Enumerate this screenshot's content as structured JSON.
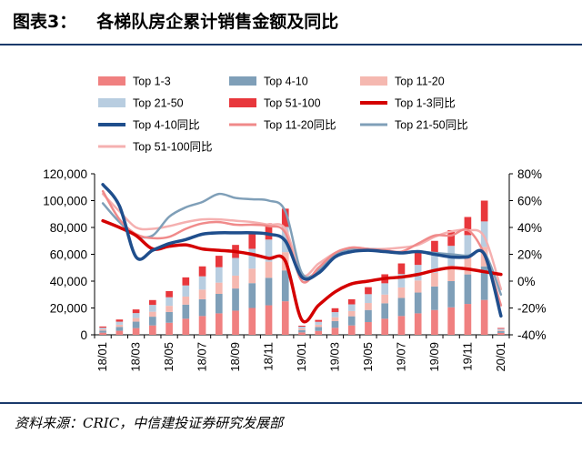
{
  "header": {
    "label": "图表3：",
    "title": "各梯队房企累计销售金额及同比"
  },
  "source": "资料来源：CRIC，中信建投证券研究发展部",
  "colors": {
    "top1_3": "#f08080",
    "top4_10": "#7f9fb8",
    "top11_20": "#f5b8b0",
    "top21_50": "#b8cde0",
    "top51_100": "#e8373c",
    "yoy1_3": "#d40000",
    "yoy4_10": "#1f4e8c",
    "yoy11_20": "#f08a8a",
    "yoy21_50": "#7f9fb8",
    "yoy51_100": "#f5b0b0",
    "rule": "#1a3a6b"
  },
  "chart_data": {
    "type": "bar",
    "stacked": true,
    "title": "",
    "xlabel": "",
    "ylabel_left": "",
    "ylabel_right": "",
    "ylim_left": [
      0,
      120000
    ],
    "ylim_right": [
      -0.4,
      0.8
    ],
    "yticks_left": [
      "0",
      "20,000",
      "40,000",
      "60,000",
      "80,000",
      "100,000",
      "120,000"
    ],
    "yticks_right": [
      "-40%",
      "-20%",
      "0%",
      "20%",
      "40%",
      "60%",
      "80%"
    ],
    "legend_position": "top",
    "categories": [
      "18/01",
      "18/02",
      "18/03",
      "18/04",
      "18/05",
      "18/06",
      "18/07",
      "18/08",
      "18/09",
      "18/10",
      "18/11",
      "18/12",
      "19/01",
      "19/02",
      "19/03",
      "19/04",
      "19/05",
      "19/06",
      "19/07",
      "19/08",
      "19/09",
      "19/10",
      "19/11",
      "19/12",
      "20/01"
    ],
    "x_tick_labels": [
      "18/01",
      "18/03",
      "18/05",
      "18/07",
      "18/09",
      "18/11",
      "19/01",
      "19/03",
      "19/05",
      "19/07",
      "19/09",
      "19/11",
      "20/01"
    ],
    "bar_series": [
      {
        "name": "Top 1-3",
        "color_key": "top1_3",
        "values": [
          1600,
          3000,
          5000,
          7000,
          9000,
          12000,
          14000,
          16000,
          18000,
          20000,
          22000,
          25000,
          1800,
          2900,
          5200,
          7000,
          9500,
          12000,
          14000,
          16000,
          18500,
          20500,
          23000,
          26000,
          1400
        ]
      },
      {
        "name": "Top 4-10",
        "color_key": "top4_10",
        "values": [
          1600,
          2900,
          4800,
          6500,
          8000,
          10500,
          12500,
          14500,
          16500,
          18500,
          20500,
          23000,
          1800,
          2900,
          5000,
          6800,
          9000,
          11500,
          13500,
          15500,
          17500,
          19500,
          22000,
          25000,
          1300
        ]
      },
      {
        "name": "Top 11-20",
        "color_key": "top11_20",
        "values": [
          900,
          1600,
          2700,
          3700,
          4600,
          6000,
          7200,
          8400,
          9600,
          10800,
          12000,
          13600,
          1100,
          1700,
          2900,
          3900,
          5200,
          6500,
          7800,
          9000,
          10300,
          11500,
          12800,
          14500,
          800
        ]
      },
      {
        "name": "Top 21-50",
        "color_key": "top21_50",
        "values": [
          1200,
          2300,
          3700,
          5100,
          6400,
          8300,
          9900,
          11500,
          13200,
          14800,
          16500,
          18800,
          1400,
          2200,
          3800,
          5000,
          6600,
          8400,
          10000,
          11600,
          13300,
          14800,
          16500,
          19000,
          1000
        ]
      },
      {
        "name": "Top 51-100",
        "color_key": "top51_100",
        "values": [
          900,
          1600,
          2700,
          3600,
          4600,
          6000,
          7400,
          8500,
          9700,
          10900,
          12000,
          13600,
          700,
          1400,
          2900,
          3800,
          5200,
          6700,
          7900,
          9000,
          10400,
          11700,
          13500,
          15500,
          600
        ]
      }
    ],
    "line_series": [
      {
        "name": "Top 1-3同比",
        "color_key": "yoy1_3",
        "width": 3,
        "values": [
          0.45,
          0.4,
          0.34,
          0.24,
          0.26,
          0.27,
          0.24,
          0.23,
          0.22,
          0.2,
          0.17,
          0.15,
          -0.29,
          -0.18,
          -0.08,
          -0.02,
          0.0,
          0.02,
          0.03,
          0.05,
          0.08,
          0.1,
          0.09,
          0.07,
          0.05
        ]
      },
      {
        "name": "Top 4-10同比",
        "color_key": "yoy4_10",
        "width": 3,
        "values": [
          0.72,
          0.56,
          0.18,
          0.23,
          0.28,
          0.31,
          0.35,
          0.36,
          0.36,
          0.36,
          0.35,
          0.3,
          0.03,
          0.06,
          0.18,
          0.22,
          0.23,
          0.22,
          0.21,
          0.22,
          0.2,
          0.18,
          0.18,
          0.2,
          -0.26
        ]
      },
      {
        "name": "Top 11-20同比",
        "color_key": "yoy11_20",
        "width": 2,
        "values": [
          0.67,
          0.46,
          0.35,
          0.32,
          0.33,
          0.39,
          0.43,
          0.44,
          0.42,
          0.42,
          0.41,
          0.36,
          0.0,
          0.1,
          0.21,
          0.25,
          0.24,
          0.23,
          0.22,
          0.28,
          0.34,
          0.34,
          0.38,
          0.2,
          -0.18
        ]
      },
      {
        "name": "Top 21-50同比",
        "color_key": "yoy21_50",
        "width": 2,
        "values": [
          0.58,
          0.44,
          0.34,
          0.34,
          0.48,
          0.55,
          0.59,
          0.65,
          0.62,
          0.61,
          0.6,
          0.52,
          0.06,
          0.08,
          0.2,
          0.24,
          0.24,
          0.23,
          0.21,
          0.22,
          0.21,
          0.2,
          0.19,
          0.21,
          -0.1
        ]
      },
      {
        "name": "Top 51-100同比",
        "color_key": "yoy51_100",
        "width": 2,
        "values": [
          0.65,
          0.52,
          0.4,
          0.39,
          0.41,
          0.44,
          0.46,
          0.46,
          0.45,
          0.44,
          0.42,
          0.39,
          0.05,
          0.13,
          0.21,
          0.25,
          0.24,
          0.24,
          0.25,
          0.27,
          0.33,
          0.37,
          0.38,
          0.33,
          -0.06
        ]
      }
    ]
  }
}
